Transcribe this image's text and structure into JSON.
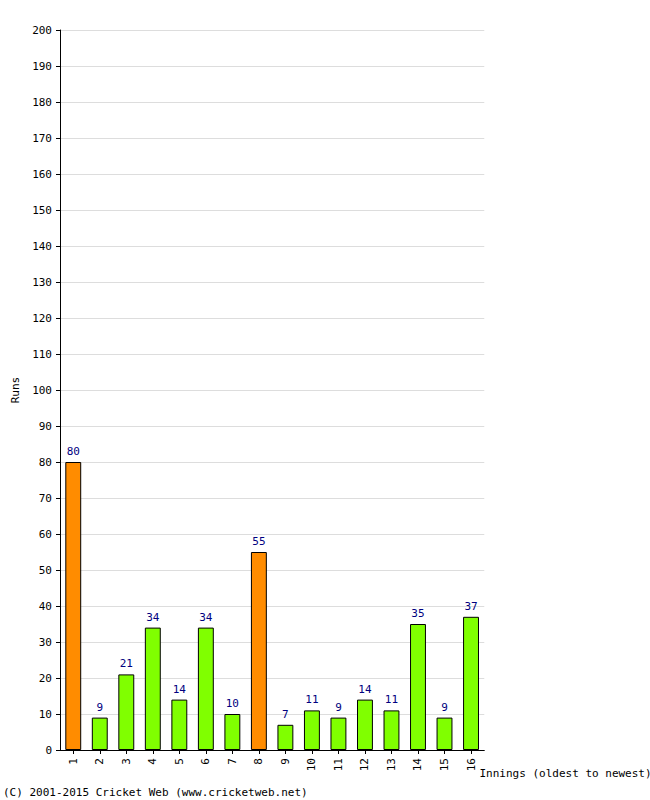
{
  "chart_data": {
    "type": "bar",
    "x_label": "Innings (oldest to newest)",
    "y_label": "Runs",
    "annotations": [
      "(C) 2001-2015 Cricket Web (www.cricketweb.net)"
    ],
    "categories": [
      "1",
      "2",
      "3",
      "4",
      "5",
      "6",
      "7",
      "8",
      "9",
      "10",
      "11",
      "12",
      "13",
      "14",
      "15",
      "16"
    ],
    "values": [
      80,
      9,
      21,
      34,
      14,
      34,
      10,
      55,
      7,
      11,
      9,
      14,
      11,
      35,
      9,
      37
    ],
    "colors": [
      "#ff8c00",
      "#80ff00",
      "#80ff00",
      "#80ff00",
      "#80ff00",
      "#80ff00",
      "#80ff00",
      "#ff8c00",
      "#80ff00",
      "#80ff00",
      "#80ff00",
      "#80ff00",
      "#80ff00",
      "#80ff00",
      "#80ff00",
      "#80ff00"
    ],
    "ylim": [
      0,
      200
    ],
    "yticks": [
      0,
      10,
      20,
      30,
      40,
      50,
      60,
      70,
      80,
      90,
      100,
      110,
      120,
      130,
      140,
      150,
      160,
      170,
      180,
      190,
      200
    ],
    "grid": true,
    "data_labels": true
  }
}
